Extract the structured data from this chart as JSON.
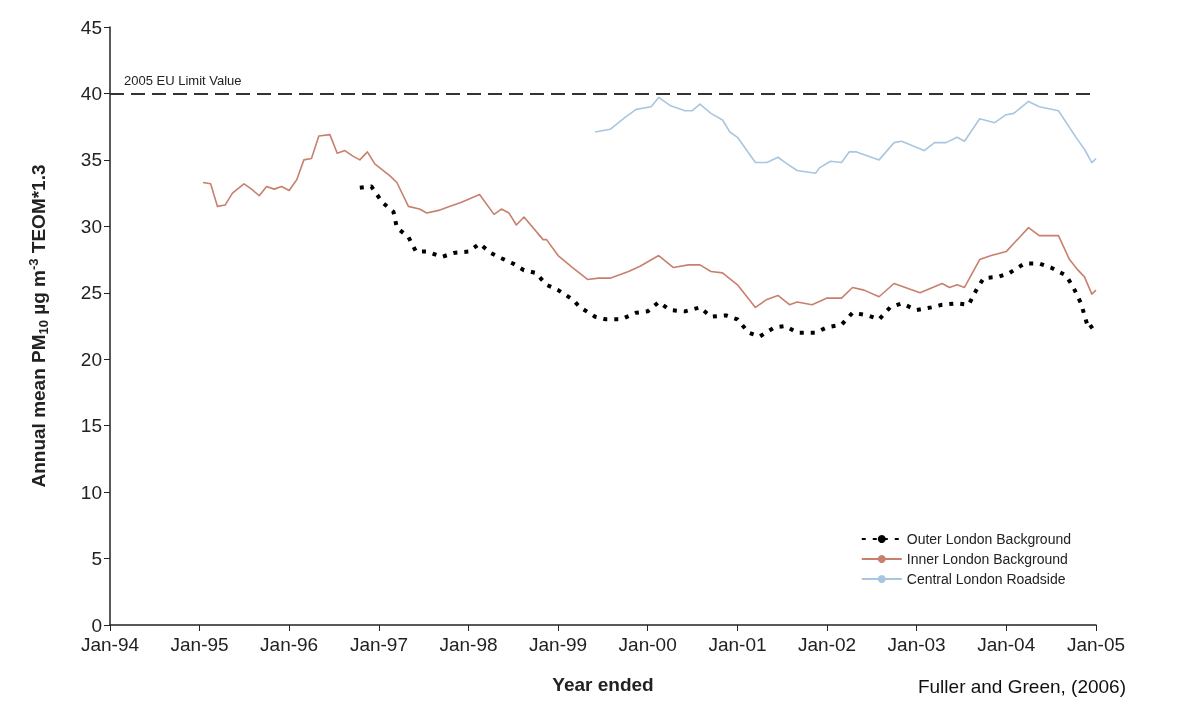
{
  "chart_data": {
    "type": "line",
    "ylabel": "Annual mean PM$_{10}$ µg m$^{-3}$ TEOM*1.3",
    "xlabel": "Year ended",
    "annotations": [
      "Fuller and Green, (2006)"
    ],
    "xlim": [
      "1994-01",
      "2005-01"
    ],
    "xticks": [
      {
        "value": "1994-01",
        "label": "Jan-94"
      },
      {
        "value": "1995-01",
        "label": "Jan-95"
      },
      {
        "value": "1996-01",
        "label": "Jan-96"
      },
      {
        "value": "1997-01",
        "label": "Jan-97"
      },
      {
        "value": "1998-01",
        "label": "Jan-98"
      },
      {
        "value": "1999-01",
        "label": "Jan-99"
      },
      {
        "value": "2000-01",
        "label": "Jan-00"
      },
      {
        "value": "2001-01",
        "label": "Jan-01"
      },
      {
        "value": "2002-01",
        "label": "Jan-02"
      },
      {
        "value": "2003-01",
        "label": "Jan-03"
      },
      {
        "value": "2004-01",
        "label": "Jan-04"
      },
      {
        "value": "2005-01",
        "label": "Jan-05"
      }
    ],
    "ylim": [
      0,
      45
    ],
    "yticks": [
      0,
      5,
      10,
      15,
      20,
      25,
      30,
      35,
      40,
      45
    ],
    "grid": false,
    "legend": "bottom right",
    "marker": "none",
    "ref_lines": [
      {
        "axis": "y",
        "value": 40,
        "label": "2005 EU Limit Value",
        "color": "#333333",
        "line_style": "dashed"
      }
    ],
    "series": [
      {
        "name": "Outer London Background",
        "color": "#000000",
        "line_style": "dotted",
        "x": [
          "1996-10-15",
          "1996-12-01",
          "1997-01-15",
          "1997-03-01",
          "1997-03-15",
          "1997-05-01",
          "1997-06-01",
          "1997-07-15",
          "1997-09-15",
          "1997-11-01",
          "1998-01-01",
          "1998-02-15",
          "1998-04-01",
          "1998-05-15",
          "1998-07-01",
          "1998-08-15",
          "1998-10-01",
          "1998-11-15",
          "1999-01-01",
          "1999-03-01",
          "1999-04-01",
          "1999-06-01",
          "1999-07-15",
          "1999-09-15",
          "1999-11-15",
          "2000-01-01",
          "2000-02-15",
          "2000-04-01",
          "2000-06-01",
          "2000-08-01",
          "2000-09-15",
          "2000-11-15",
          "2001-01-01",
          "2001-02-15",
          "2001-04-01",
          "2001-06-01",
          "2001-07-15",
          "2001-09-01",
          "2001-11-15",
          "2002-01-01",
          "2002-03-01",
          "2002-04-15",
          "2002-06-15",
          "2002-08-01",
          "2002-09-15",
          "2002-11-01",
          "2003-01-01",
          "2003-03-01",
          "2003-04-15",
          "2003-06-15",
          "2003-08-01",
          "2003-09-01",
          "2003-10-01",
          "2003-12-01",
          "2004-01-15",
          "2004-03-15",
          "2004-05-15",
          "2004-07-01",
          "2004-09-01",
          "2004-10-01",
          "2004-11-01",
          "2004-12-01",
          "2005-01-01"
        ],
        "values": [
          32.9,
          33.0,
          31.8,
          31.1,
          29.9,
          29.2,
          28.1,
          28.1,
          27.7,
          28.0,
          28.1,
          28.7,
          28.0,
          27.6,
          27.2,
          26.7,
          26.5,
          25.6,
          25.2,
          24.5,
          23.9,
          23.2,
          23.0,
          23.0,
          23.5,
          23.6,
          24.3,
          23.7,
          23.6,
          23.9,
          23.2,
          23.3,
          23.0,
          22.0,
          21.7,
          22.4,
          22.5,
          22.0,
          22.0,
          22.4,
          22.6,
          23.5,
          23.3,
          23.0,
          23.9,
          24.2,
          23.7,
          23.9,
          24.1,
          24.2,
          24.1,
          25.2,
          26.1,
          26.2,
          26.5,
          27.2,
          27.2,
          26.9,
          26.3,
          25.4,
          24.2,
          22.3,
          22.7
        ]
      },
      {
        "name": "Inner London Background",
        "color": "#c8806e",
        "line_style": "solid",
        "x": [
          "1995-01-15",
          "1995-02-15",
          "1995-03-15",
          "1995-04-15",
          "1995-05-15",
          "1995-07-01",
          "1995-08-01",
          "1995-09-01",
          "1995-10-01",
          "1995-11-01",
          "1995-12-01",
          "1996-01-01",
          "1996-02-01",
          "1996-03-01",
          "1996-04-01",
          "1996-05-01",
          "1996-06-15",
          "1996-07-15",
          "1996-08-15",
          "1996-09-15",
          "1996-10-15",
          "1996-11-15",
          "1996-12-15",
          "1997-02-15",
          "1997-03-15",
          "1997-05-01",
          "1997-06-15",
          "1997-07-15",
          "1997-09-01",
          "1997-10-15",
          "1997-12-01",
          "1998-02-15",
          "1998-04-15",
          "1998-05-15",
          "1998-06-15",
          "1998-07-15",
          "1998-08-15",
          "1998-11-01",
          "1998-11-15",
          "1999-01-01",
          "1999-03-01",
          "1999-05-01",
          "1999-06-15",
          "1999-08-01",
          "1999-10-15",
          "1999-12-01",
          "2000-02-15",
          "2000-04-15",
          "2000-06-15",
          "2000-08-01",
          "2000-09-15",
          "2000-11-01",
          "2001-01-01",
          "2001-03-15",
          "2001-05-01",
          "2001-06-15",
          "2001-08-01",
          "2001-09-01",
          "2001-11-01",
          "2002-01-01",
          "2002-03-01",
          "2002-04-15",
          "2002-06-01",
          "2002-08-01",
          "2002-10-01",
          "2003-01-15",
          "2003-04-15",
          "2003-05-15",
          "2003-06-15",
          "2003-07-15",
          "2003-09-15",
          "2003-11-01",
          "2004-01-01",
          "2004-04-01",
          "2004-05-15",
          "2004-08-01",
          "2004-09-15",
          "2004-10-15",
          "2004-11-15",
          "2004-12-15",
          "2005-01-01"
        ],
        "values": [
          33.3,
          33.2,
          31.5,
          31.6,
          32.5,
          33.2,
          32.8,
          32.3,
          33.0,
          32.8,
          33.0,
          32.7,
          33.5,
          35.0,
          35.1,
          36.8,
          36.9,
          35.5,
          35.7,
          35.3,
          35.0,
          35.6,
          34.7,
          33.8,
          33.3,
          31.5,
          31.3,
          31.0,
          31.2,
          31.5,
          31.8,
          32.4,
          30.9,
          31.3,
          31.0,
          30.1,
          30.7,
          29.0,
          29.0,
          27.8,
          26.9,
          26.0,
          26.1,
          26.1,
          26.6,
          27.0,
          27.8,
          26.9,
          27.1,
          27.1,
          26.6,
          26.5,
          25.6,
          23.9,
          24.5,
          24.8,
          24.1,
          24.3,
          24.1,
          24.6,
          24.6,
          25.4,
          25.2,
          24.7,
          25.7,
          25.0,
          25.7,
          25.4,
          25.6,
          25.4,
          27.5,
          27.8,
          28.1,
          29.9,
          29.3,
          29.3,
          27.5,
          26.8,
          26.2,
          24.9,
          25.2
        ]
      },
      {
        "name": "Central London Roadside",
        "color": "#a9c6e0",
        "line_style": "solid",
        "x": [
          "1999-06-01",
          "1999-08-01",
          "1999-10-01",
          "1999-11-15",
          "2000-01-15",
          "2000-02-15",
          "2000-04-01",
          "2000-06-01",
          "2000-07-01",
          "2000-08-01",
          "2000-09-15",
          "2000-11-01",
          "2000-12-01",
          "2001-01-01",
          "2001-03-15",
          "2001-05-01",
          "2001-06-15",
          "2001-07-15",
          "2001-09-01",
          "2001-11-15",
          "2001-12-01",
          "2002-01-15",
          "2002-03-01",
          "2002-04-01",
          "2002-05-01",
          "2002-08-01",
          "2002-10-01",
          "2002-11-01",
          "2003-02-01",
          "2003-03-15",
          "2003-05-01",
          "2003-06-15",
          "2003-07-15",
          "2003-09-15",
          "2003-11-15",
          "2004-01-01",
          "2004-02-01",
          "2004-04-01",
          "2004-05-15",
          "2004-08-01",
          "2004-10-15",
          "2004-11-15",
          "2004-12-15",
          "2005-01-01"
        ],
        "values": [
          37.1,
          37.3,
          38.2,
          38.8,
          39.0,
          39.7,
          39.1,
          38.7,
          38.7,
          39.2,
          38.5,
          38.0,
          37.1,
          36.7,
          34.8,
          34.8,
          35.2,
          34.8,
          34.2,
          34.0,
          34.4,
          34.9,
          34.8,
          35.6,
          35.6,
          35.0,
          36.3,
          36.4,
          35.7,
          36.3,
          36.3,
          36.7,
          36.4,
          38.1,
          37.8,
          38.4,
          38.5,
          39.4,
          39.0,
          38.7,
          36.6,
          35.8,
          34.8,
          35.1
        ]
      }
    ]
  }
}
